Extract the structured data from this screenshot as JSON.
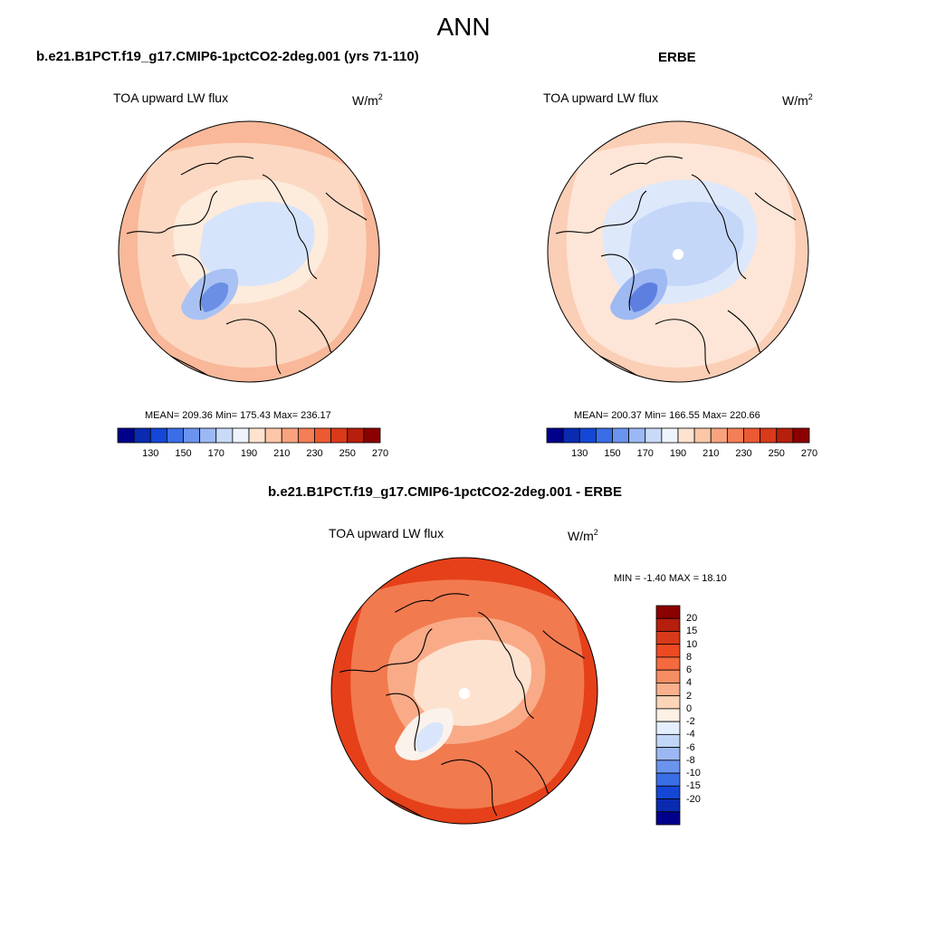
{
  "title": "ANN",
  "panels": [
    {
      "title": "b.e21.B1PCT.f19_g17.CMIP6-1pctCO2-2deg.001 (yrs 71-110)",
      "variable": "TOA upward LW flux",
      "units_base": "W/m",
      "units_exp": "2",
      "stats": "MEAN= 209.36  Min= 175.43  Max= 236.17"
    },
    {
      "title": "ERBE",
      "variable": "TOA upward LW flux",
      "units_base": "W/m",
      "units_exp": "2",
      "stats": "MEAN= 200.37  Min= 166.55  Max= 220.66"
    }
  ],
  "difference": {
    "title": "b.e21.B1PCT.f19_g17.CMIP6-1pctCO2-2deg.001 - ERBE",
    "variable": "TOA upward LW flux",
    "units_base": "W/m",
    "units_exp": "2",
    "stats": "MIN =  -1.40 MAX =  18.10"
  },
  "colorbar_abs": {
    "tick_labels": [
      "130",
      "150",
      "170",
      "190",
      "210",
      "230",
      "250",
      "270"
    ],
    "colors": [
      "#00008b",
      "#0a2bb0",
      "#1447d6",
      "#3a6ee6",
      "#6b94ee",
      "#9cb8f4",
      "#c9daf9",
      "#eef3fc",
      "#fde3d0",
      "#fcc7a8",
      "#f9a37e",
      "#f47e55",
      "#ec5a33",
      "#d93a1a",
      "#b51f0c",
      "#8b0000"
    ]
  },
  "colorbar_diff": {
    "tick_labels": [
      "20",
      "15",
      "10",
      "8",
      "6",
      "4",
      "2",
      "0",
      "-2",
      "-4",
      "-6",
      "-8",
      "-10",
      "-15",
      "-20"
    ],
    "colors": [
      "#8b0000",
      "#b51f0c",
      "#d93a1a",
      "#ec4a22",
      "#f46a3e",
      "#f78d63",
      "#fab08c",
      "#fcd4b8",
      "#fdf1e6",
      "#e6efff",
      "#c2d6f7",
      "#9cb8f4",
      "#6b94ee",
      "#3a6ee6",
      "#1447d6",
      "#0a2bb0",
      "#00008b"
    ]
  },
  "map_palettes": {
    "panel1": {
      "ocean": "#f8b899",
      "mid": "#fcd8c2",
      "land": "#fdebdc",
      "cold": "#d6e4fb",
      "colder": "#a9c2f3",
      "coldest": "#6c8fe6"
    },
    "panel2": {
      "ocean": "#fbceb6",
      "mid": "#fde6d7",
      "land": "#dde8fb",
      "cold": "#c5d7f8",
      "colder": "#9fb9f2",
      "coldest": "#5c7fe0"
    },
    "diff": {
      "ocean": "#e5401a",
      "mid": "#f27a4f",
      "land": "#f9ab88",
      "cold": "#fde2d0",
      "colder": "#fbf2ec",
      "coldest": "#d8e5fb"
    }
  }
}
